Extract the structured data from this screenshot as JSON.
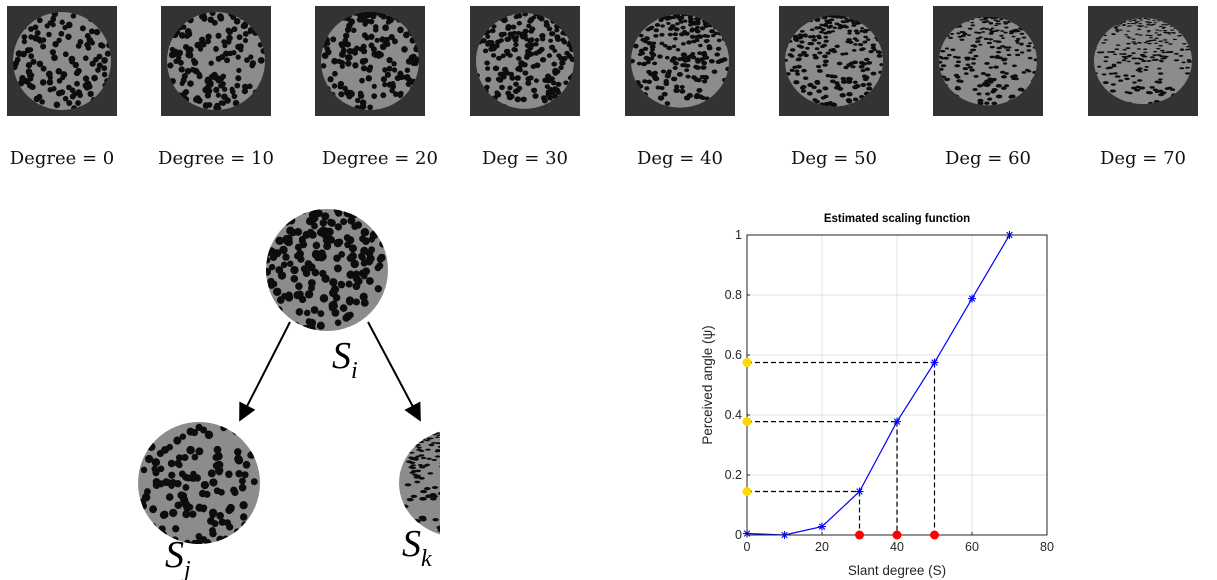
{
  "panels": [
    {
      "label": "Degree = 0",
      "slant": 0
    },
    {
      "label": "Degree = 10",
      "slant": 10
    },
    {
      "label": "Degree = 20",
      "slant": 20
    },
    {
      "label": "Deg = 30",
      "slant": 30
    },
    {
      "label": "Deg = 40",
      "slant": 40
    },
    {
      "label": "Deg = 50",
      "slant": 50
    },
    {
      "label": "Deg = 60",
      "slant": 60
    },
    {
      "label": "Deg = 70",
      "slant": 70
    }
  ],
  "tree": {
    "root": "S_i",
    "left": "S_j",
    "right": "S_k",
    "root_slant": 20,
    "left_slant": 0,
    "right_slant": 65
  },
  "colors": {
    "tile_background": "#333333",
    "texture_gray": "#8c8c8c",
    "series_line": "#0000ff",
    "marker_x": "#ff0000",
    "marker_y": "#ffd700"
  },
  "chart_data": {
    "type": "line",
    "title": "Estimated scaling function",
    "xlabel": "Slant degree (S)",
    "ylabel": "Perceived angle (ψ)",
    "xlim": [
      0,
      80
    ],
    "ylim": [
      0,
      1
    ],
    "xticks": [
      0,
      20,
      40,
      60,
      80
    ],
    "yticks": [
      0,
      0.2,
      0.4,
      0.6,
      0.8,
      1
    ],
    "grid": true,
    "series": [
      {
        "x": [
          0,
          10,
          20,
          30,
          40,
          50,
          60,
          70
        ],
        "y": [
          0.005,
          0.0,
          0.028,
          0.145,
          0.378,
          0.575,
          0.788,
          1.0
        ],
        "marker": "asterisk"
      }
    ],
    "guides": [
      {
        "x": 30,
        "y": 0.145
      },
      {
        "x": 40,
        "y": 0.378
      },
      {
        "x": 50,
        "y": 0.575
      }
    ]
  }
}
